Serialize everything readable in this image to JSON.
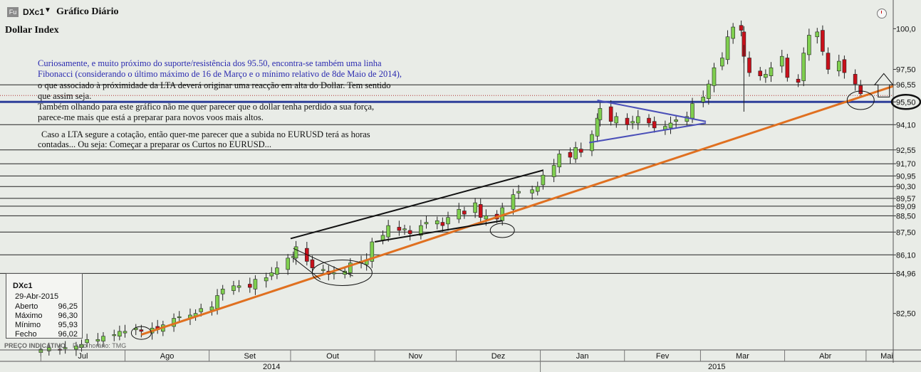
{
  "header": {
    "badge": "Fu",
    "symbol": "DXc1",
    "dropdown_arrow": "▼",
    "title": "Gráfico Diário",
    "clock_icon": "clock-icon"
  },
  "chart_title": "Dollar Index",
  "notes": {
    "blue_line1": "Curiosamente, e muito próximo do suporte/resistência dos 95.50, encontra-se também uma linha",
    "blue_line2": "Fibonacci (considerando o último máximo de 16 de Março e o mínimo relativo de 8de Maio de 2014),",
    "black_line1": "o que associado à próximidade da LTA deverá originar uma reacção em alta do Dollar. Tem sentido",
    "black_line2": "que assim seja.",
    "black_line3": "Também olhando para este gráfico não me quer parecer que o dollar tenha perdido a sua força,",
    "black_line4": "parece-me mais que está a preparar para novos voos mais altos.",
    "black_line5": "Caso a LTA segure a cotação, então quer-me parecer que a subida no EURUSD terá as horas",
    "black_line6": "contadas... Ou seja: Começar a preparar os Curtos no EURUSD..."
  },
  "infobox": {
    "symbol": "DXc1",
    "date": "29-Abr-2015",
    "rows": [
      {
        "label": "Aberto",
        "value": "96,25"
      },
      {
        "label": "Máximo",
        "value": "96,30"
      },
      {
        "label": "Mínimo",
        "value": "95,93"
      },
      {
        "label": "Fecho",
        "value": "96,02"
      }
    ]
  },
  "footer": {
    "indicative": "PREÇO INDICATIVO",
    "timezone": "Fuso horário: TMG"
  },
  "colors": {
    "background": "#e9ece7",
    "up_candle": "#7fcf4f",
    "down_candle": "#c8101a",
    "trend_line": "#e07020",
    "support_line": "#2e3f9a",
    "blue_triangle": "#4a4fb8"
  },
  "chart_data": {
    "type": "candlestick",
    "title": "Dollar Index",
    "y_axis_labels": [
      "100,0",
      "97,50",
      "96,55",
      "95,50",
      "94,10",
      "92,55",
      "91,70",
      "90,95",
      "90,30",
      "89,57",
      "89,09",
      "88,50",
      "87,50",
      "86,10",
      "84,96",
      "82,50"
    ],
    "highlighted_y_label": "95,50",
    "x_axis_months": [
      "Jul",
      "Ago",
      "Set",
      "Out",
      "Nov",
      "Dez",
      "Jan",
      "Fev",
      "Mar",
      "Abr",
      "Mai"
    ],
    "x_axis_years": [
      "2014",
      "2015"
    ],
    "ylim": [
      80.3,
      101.5
    ],
    "horizontal_levels": [
      96.55,
      95.5,
      94.1,
      92.55,
      91.7,
      90.95,
      90.3,
      89.57,
      89.09,
      88.5,
      87.5,
      86.1,
      84.96
    ],
    "support_level": 95.5,
    "trend_line": {
      "from": [
        "2014-08-07",
        81.2
      ],
      "to": [
        "2015-05-08",
        96.3
      ]
    },
    "close_path": [
      [
        "2014-07-01",
        80.3
      ],
      [
        "2014-07-04",
        80.4
      ],
      [
        "2014-07-08",
        80.3
      ],
      [
        "2014-07-10",
        80.4
      ],
      [
        "2014-07-14",
        80.5
      ],
      [
        "2014-07-16",
        80.6
      ],
      [
        "2014-07-18",
        80.9
      ],
      [
        "2014-07-22",
        80.9
      ],
      [
        "2014-07-24",
        81.1
      ],
      [
        "2014-07-28",
        81.2
      ],
      [
        "2014-07-30",
        81.4
      ],
      [
        "2014-08-01",
        81.4
      ],
      [
        "2014-08-05",
        81.6
      ],
      [
        "2014-08-07",
        81.4
      ],
      [
        "2014-08-11",
        81.6
      ],
      [
        "2014-08-13",
        81.5
      ],
      [
        "2014-08-15",
        81.8
      ],
      [
        "2014-08-19",
        82.2
      ],
      [
        "2014-08-21",
        82.3
      ],
      [
        "2014-08-25",
        82.4
      ],
      [
        "2014-08-27",
        82.5
      ],
      [
        "2014-08-29",
        82.8
      ],
      [
        "2014-09-02",
        82.9
      ],
      [
        "2014-09-04",
        83.6
      ],
      [
        "2014-09-06",
        84.0
      ],
      [
        "2014-09-10",
        84.2
      ],
      [
        "2014-09-12",
        84.2
      ],
      [
        "2014-09-16",
        84.1
      ],
      [
        "2014-09-18",
        84.6
      ],
      [
        "2014-09-22",
        84.7
      ],
      [
        "2014-09-24",
        85.0
      ],
      [
        "2014-09-26",
        85.3
      ],
      [
        "2014-09-30",
        85.9
      ],
      [
        "2014-10-02",
        86.0
      ],
      [
        "2014-10-03",
        86.6
      ],
      [
        "2014-10-07",
        85.7
      ],
      [
        "2014-10-09",
        85.3
      ],
      [
        "2014-10-13",
        85.2
      ],
      [
        "2014-10-15",
        84.9
      ],
      [
        "2014-10-17",
        85.0
      ],
      [
        "2014-10-21",
        85.1
      ],
      [
        "2014-10-23",
        85.6
      ],
      [
        "2014-10-27",
        85.6
      ],
      [
        "2014-10-29",
        85.8
      ],
      [
        "2014-10-31",
        86.9
      ],
      [
        "2014-11-04",
        87.3
      ],
      [
        "2014-11-06",
        87.9
      ],
      [
        "2014-11-10",
        87.6
      ],
      [
        "2014-11-12",
        87.7
      ],
      [
        "2014-11-14",
        87.4
      ],
      [
        "2014-11-18",
        87.9
      ],
      [
        "2014-11-20",
        88.1
      ],
      [
        "2014-11-24",
        88.2
      ],
      [
        "2014-11-26",
        87.9
      ],
      [
        "2014-11-28",
        88.4
      ],
      [
        "2014-12-02",
        88.9
      ],
      [
        "2014-12-04",
        88.6
      ],
      [
        "2014-12-08",
        89.3
      ],
      [
        "2014-12-10",
        88.4
      ],
      [
        "2014-12-12",
        88.5
      ],
      [
        "2014-12-16",
        88.3
      ],
      [
        "2014-12-18",
        89.0
      ],
      [
        "2014-12-22",
        89.8
      ],
      [
        "2014-12-24",
        90.0
      ],
      [
        "2014-12-29",
        90.1
      ],
      [
        "2014-12-31",
        90.3
      ],
      [
        "2015-01-02",
        91.0
      ],
      [
        "2015-01-06",
        91.6
      ],
      [
        "2015-01-08",
        92.3
      ],
      [
        "2015-01-12",
        92.1
      ],
      [
        "2015-01-14",
        92.7
      ],
      [
        "2015-01-16",
        92.4
      ],
      [
        "2015-01-20",
        93.5
      ],
      [
        "2015-01-22",
        94.5
      ],
      [
        "2015-01-23",
        95.1
      ],
      [
        "2015-01-27",
        94.3
      ],
      [
        "2015-01-29",
        94.6
      ],
      [
        "2015-02-02",
        94.1
      ],
      [
        "2015-02-04",
        94.3
      ],
      [
        "2015-02-06",
        94.6
      ],
      [
        "2015-02-10",
        94.2
      ],
      [
        "2015-02-12",
        93.9
      ],
      [
        "2015-02-16",
        94.0
      ],
      [
        "2015-02-18",
        94.2
      ],
      [
        "2015-02-20",
        94.4
      ],
      [
        "2015-02-24",
        94.6
      ],
      [
        "2015-02-26",
        95.4
      ],
      [
        "2015-03-02",
        95.8
      ],
      [
        "2015-03-04",
        96.6
      ],
      [
        "2015-03-06",
        97.6
      ],
      [
        "2015-03-09",
        98.2
      ],
      [
        "2015-03-11",
        99.5
      ],
      [
        "2015-03-13",
        100.1
      ],
      [
        "2015-03-16",
        99.9
      ],
      [
        "2015-03-17",
        98.3
      ],
      [
        "2015-03-19",
        97.3
      ],
      [
        "2015-03-23",
        97.1
      ],
      [
        "2015-03-25",
        97.2
      ],
      [
        "2015-03-27",
        97.6
      ],
      [
        "2015-03-31",
        98.3
      ],
      [
        "2015-04-02",
        97.0
      ],
      [
        "2015-04-06",
        96.7
      ],
      [
        "2015-04-08",
        98.5
      ],
      [
        "2015-04-10",
        99.6
      ],
      [
        "2015-04-13",
        99.8
      ],
      [
        "2015-04-15",
        98.6
      ],
      [
        "2015-04-17",
        97.5
      ],
      [
        "2015-04-21",
        98.0
      ],
      [
        "2015-04-23",
        97.3
      ],
      [
        "2015-04-27",
        96.6
      ],
      [
        "2015-04-29",
        96.0
      ]
    ],
    "info": {
      "symbol": "DXc1",
      "date": "29-Abr-2015",
      "open": 96.25,
      "high": 96.3,
      "low": 95.93,
      "close": 96.02
    }
  }
}
